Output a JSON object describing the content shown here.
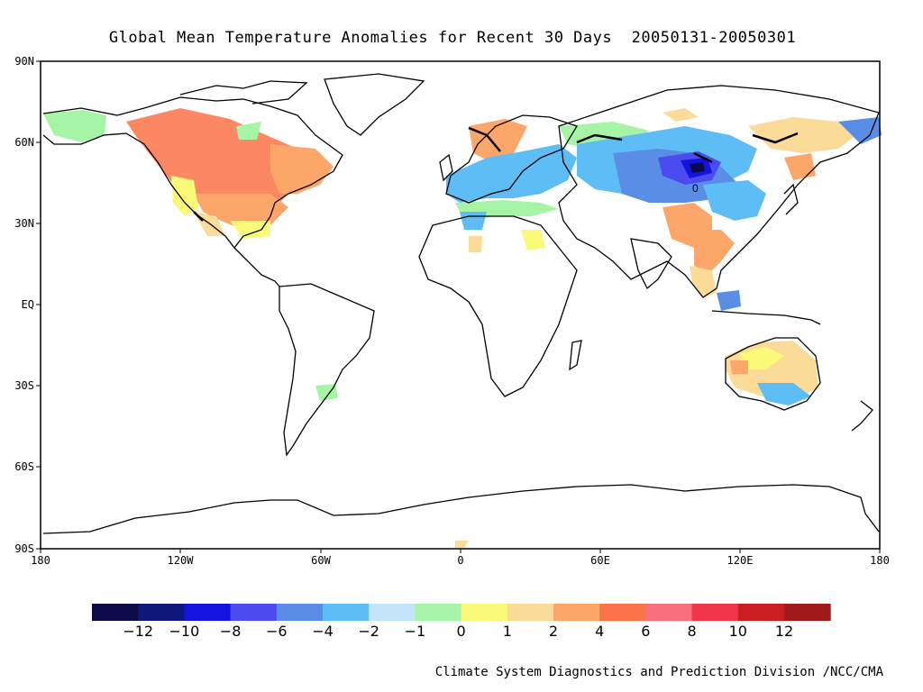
{
  "title": "Global Mean Temperature Anomalies for Recent 30 Days  20050131-20050301",
  "credit": "Climate System Diagnostics and Prediction Division /NCC/CMA",
  "y_axis_labels": [
    "90N",
    "60N",
    "30N",
    "EQ",
    "30S",
    "60S",
    "90S"
  ],
  "x_axis_labels": [
    "180",
    "120W",
    "60W",
    "0",
    "60E",
    "120E",
    "180"
  ],
  "contour_label": "0",
  "legend": {
    "labels": [
      "-12",
      "-10",
      "-8",
      "-6",
      "-4",
      "-2",
      "-1",
      "0",
      "1",
      "2",
      "4",
      "6",
      "8",
      "10",
      "12"
    ],
    "colors": [
      "#0b0b4a",
      "#10177a",
      "#1414e0",
      "#4b4bf0",
      "#5a8ee6",
      "#5fbdf5",
      "#c4e4f8",
      "#a6f5a6",
      "#fafa78",
      "#fadc98",
      "#fca66a",
      "#fc7248",
      "#f86e7a",
      "#f0364a",
      "#c81e1e",
      "#a01a1a"
    ]
  },
  "anomaly_regions": [
    {
      "region": "Western Canada",
      "anomaly": 4
    },
    {
      "region": "Eastern Canada / NE USA",
      "anomaly": 3
    },
    {
      "region": "Central USA",
      "anomaly": 3
    },
    {
      "region": "Pacific NW USA",
      "anomaly": 1
    },
    {
      "region": "Alaska",
      "anomaly": 0.5
    },
    {
      "region": "Scandinavia",
      "anomaly": 3
    },
    {
      "region": "Central Europe",
      "anomaly": -3
    },
    {
      "region": "Western Europe",
      "anomaly": -2
    },
    {
      "region": "North Africa",
      "anomaly": -1
    },
    {
      "region": "Central Siberia",
      "anomaly": -3
    },
    {
      "region": "Mongolia",
      "anomaly": -9
    },
    {
      "region": "Central Asia",
      "anomaly": -4
    },
    {
      "region": "Tibet / Himalaya",
      "anomaly": 3
    },
    {
      "region": "Southeast Asia",
      "anomaly": 2
    },
    {
      "region": "Borneo",
      "anomaly": -5
    },
    {
      "region": "Australia",
      "anomaly": 1.5
    },
    {
      "region": "SE Australia",
      "anomaly": -1
    },
    {
      "region": "Eastern Siberia",
      "anomaly": 2
    },
    {
      "region": "Far East Russia",
      "anomaly": -4
    },
    {
      "region": "Southern South America",
      "anomaly": 0
    }
  ]
}
